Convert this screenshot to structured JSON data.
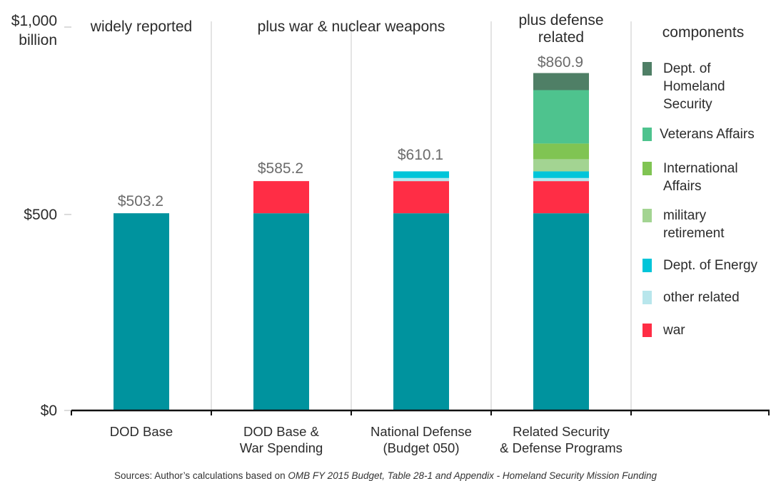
{
  "chart_data": {
    "type": "bar",
    "stacked": true,
    "title": "",
    "ylabel": "",
    "xlabel": "",
    "ylim": [
      0,
      1000
    ],
    "y_ticks": [
      {
        "value": 0,
        "label": "$0"
      },
      {
        "value": 500,
        "label": "$500"
      },
      {
        "value": 1000,
        "label": "$1,000\nbillion"
      }
    ],
    "categories": [
      "DOD Base",
      "DOD Base &\nWar Spending",
      "National Defense\n(Budget 050)",
      "Related Security\n& Defense Programs"
    ],
    "group_headers": [
      "widely reported",
      "plus war & nuclear weapons",
      "plus defense\nrelated"
    ],
    "totals": [
      503.2,
      585.2,
      610.1,
      860.9
    ],
    "total_labels": [
      "$503.2",
      "$585.2",
      "$610.1",
      "$860.9"
    ],
    "series": [
      {
        "name": "DOD base",
        "color": "#00939e",
        "values": [
          503.2,
          503.2,
          503.2,
          503.2
        ],
        "in_legend": false
      },
      {
        "name": "war",
        "color": "#ff2d45",
        "values": [
          0,
          82.0,
          82.0,
          82.0
        ]
      },
      {
        "name": "other related",
        "color": "#b8e6ec",
        "values": [
          0,
          0,
          7.9,
          7.9
        ]
      },
      {
        "name": "Dept. of Energy",
        "color": "#00c5d9",
        "values": [
          0,
          0,
          17.0,
          17.0
        ]
      },
      {
        "name": "military retirement",
        "color": "#a3d492",
        "values": [
          0,
          0,
          0,
          31.0
        ]
      },
      {
        "name": "International\nAffairs",
        "color": "#80c453",
        "values": [
          0,
          0,
          0,
          40.0
        ]
      },
      {
        "name": "Veterans Affairs",
        "color": "#4ec38e",
        "values": [
          0,
          0,
          0,
          136.2
        ]
      },
      {
        "name": "Dept. of\nHomeland\nSecurity",
        "color": "#4f7f66",
        "values": [
          0,
          0,
          0,
          43.6
        ]
      }
    ],
    "legend": {
      "title": "components",
      "placement": "right",
      "items": [
        {
          "label": "Dept. of\nHomeland\nSecurity",
          "color": "#4f7f66"
        },
        {
          "label": "Veterans Affairs",
          "color": "#4ec38e"
        },
        {
          "label": "International\nAffairs",
          "color": "#80c453"
        },
        {
          "label": "military\nretirement",
          "color": "#a3d492"
        },
        {
          "label": "Dept. of Energy",
          "color": "#00c5d9"
        },
        {
          "label": "other related",
          "color": "#b8e6ec"
        },
        {
          "label": "war",
          "color": "#ff2d45"
        }
      ]
    },
    "grid": false
  },
  "sources": {
    "prefix": "Sources: Author’s calculations based on ",
    "italic": "OMB FY 2015 Budget, Table 28-1 and Appendix - Homeland Security Mission Funding"
  }
}
